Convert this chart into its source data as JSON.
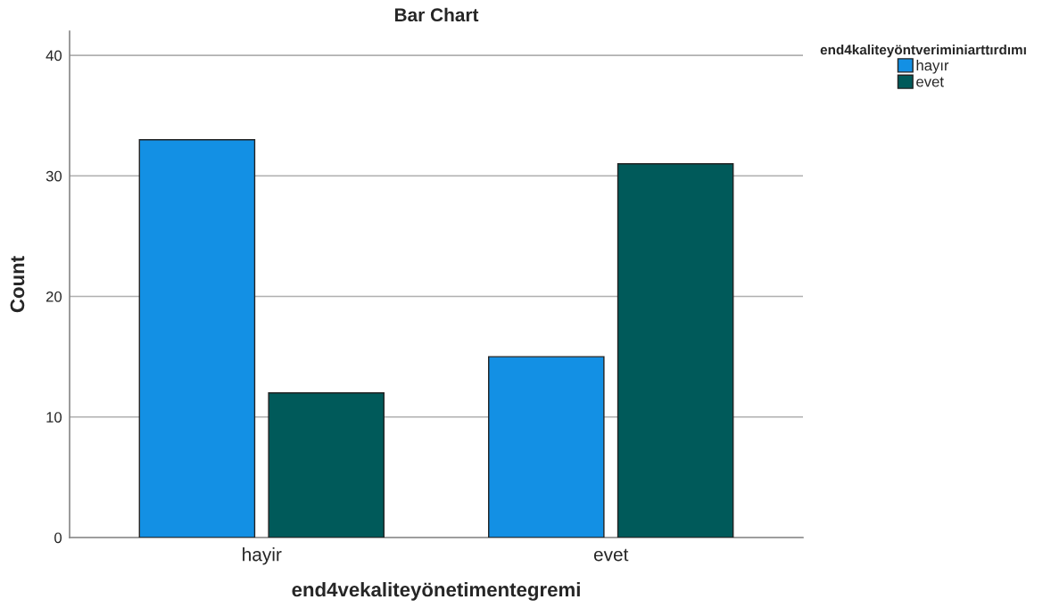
{
  "chart_data": {
    "type": "bar",
    "title": "Bar Chart",
    "xlabel": "end4vekaliteyönetimentegremi",
    "ylabel": "Count",
    "legend_title": "end4kaliteyöntveriminiarttırdımı",
    "categories": [
      "hayir",
      "evet"
    ],
    "series": [
      {
        "name": "hayır",
        "color": "#1390e4",
        "values": [
          33,
          15
        ]
      },
      {
        "name": "evet",
        "color": "#005a5a",
        "values": [
          12,
          31
        ]
      }
    ],
    "ylim": [
      0,
      42
    ],
    "yticks": [
      0,
      10,
      20,
      30,
      40
    ],
    "grid": "y",
    "legend": "top right"
  }
}
